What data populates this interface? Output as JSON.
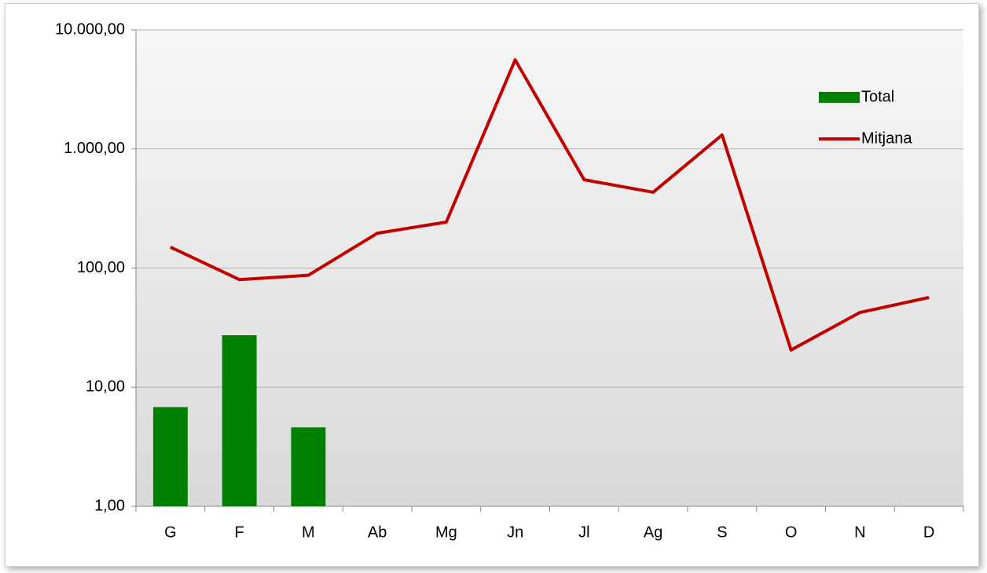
{
  "chart_data": {
    "type": "bar_line",
    "categories": [
      "G",
      "F",
      "M",
      "Ab",
      "Mg",
      "Jn",
      "Jl",
      "Ag",
      "S",
      "O",
      "N",
      "D"
    ],
    "series": [
      {
        "name": "Total",
        "type": "bar",
        "color": "#008000",
        "values": [
          6.8,
          27.3,
          4.6,
          null,
          null,
          null,
          null,
          null,
          null,
          null,
          null,
          null
        ]
      },
      {
        "name": "Mitjana",
        "type": "line",
        "color": "#c00000",
        "values": [
          150,
          80,
          87,
          196,
          243,
          5600,
          551,
          433,
          1309,
          20.5,
          42.4,
          56.6
        ]
      }
    ],
    "ylim": [
      1,
      10000
    ],
    "yticks": [
      {
        "value": 1,
        "label": "1,00"
      },
      {
        "value": 10,
        "label": "10,00"
      },
      {
        "value": 100,
        "label": "100,00"
      },
      {
        "value": 1000,
        "label": "1.000,00"
      },
      {
        "value": 10000,
        "label": "10.000,00"
      }
    ],
    "log_y": true,
    "grid": true,
    "legend": "top-right"
  }
}
